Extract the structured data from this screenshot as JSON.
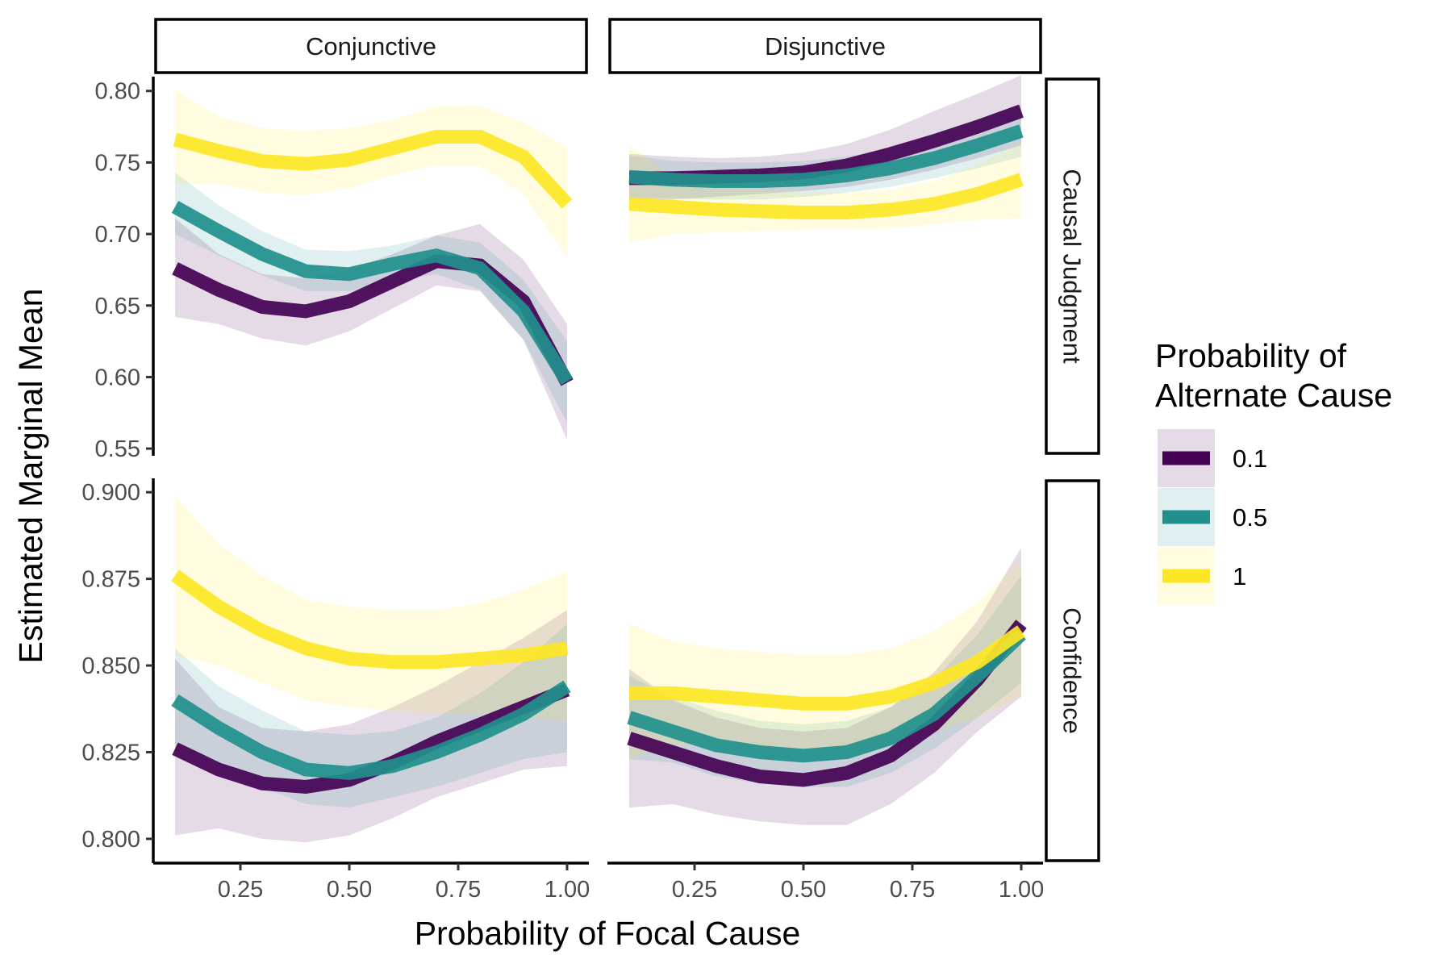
{
  "chart_data": {
    "type": "line",
    "xlabel": "Probability of Focal Cause",
    "ylabel": "Estimated Marginal Mean",
    "x_ticks": [
      0.25,
      0.5,
      0.75,
      1.0
    ],
    "x_tick_labels": [
      "0.25",
      "0.50",
      "0.75",
      "1.00"
    ],
    "xlim": [
      0.05,
      1.05
    ],
    "x": [
      0.1,
      0.2,
      0.3,
      0.4,
      0.5,
      0.6,
      0.7,
      0.8,
      0.9,
      1.0
    ],
    "col_facets": [
      "Conjunctive",
      "Disjunctive"
    ],
    "row_facets": [
      {
        "name": "Causal Judgment",
        "ylim": [
          0.545,
          0.81
        ],
        "y_ticks": [
          0.55,
          0.6,
          0.65,
          0.7,
          0.75,
          0.8
        ],
        "y_tick_labels": [
          "0.55",
          "0.60",
          "0.65",
          "0.70",
          "0.75",
          "0.80"
        ]
      },
      {
        "name": "Confidence",
        "ylim": [
          0.793,
          0.904
        ],
        "y_ticks": [
          0.8,
          0.825,
          0.85,
          0.875,
          0.9
        ],
        "y_tick_labels": [
          "0.800",
          "0.825",
          "0.850",
          "0.875",
          "0.900"
        ]
      }
    ],
    "legend": {
      "title_lines": [
        "Probability of",
        "Alternate Cause"
      ],
      "placement": "right",
      "entries": [
        {
          "label": "0.1",
          "color": "#440154"
        },
        {
          "label": "0.5",
          "color": "#21908C"
        },
        {
          "label": "1",
          "color": "#FDE725"
        }
      ]
    },
    "panels": [
      {
        "row": 0,
        "col": 0,
        "series": [
          {
            "color": "#440154",
            "y": [
              0.676,
              0.661,
              0.649,
              0.646,
              0.653,
              0.667,
              0.681,
              0.678,
              0.653,
              0.596
            ],
            "lower": [
              0.642,
              0.637,
              0.627,
              0.622,
              0.632,
              0.648,
              0.664,
              0.66,
              0.626,
              0.556
            ],
            "upper": [
              0.711,
              0.686,
              0.672,
              0.669,
              0.675,
              0.686,
              0.699,
              0.707,
              0.682,
              0.637
            ]
          },
          {
            "color": "#21908C",
            "y": [
              0.719,
              0.702,
              0.686,
              0.674,
              0.672,
              0.679,
              0.685,
              0.676,
              0.646,
              0.597
            ],
            "lower": [
              0.7,
              0.685,
              0.671,
              0.66,
              0.66,
              0.667,
              0.672,
              0.661,
              0.626,
              0.568
            ],
            "upper": [
              0.743,
              0.72,
              0.702,
              0.689,
              0.688,
              0.692,
              0.699,
              0.694,
              0.668,
              0.625
            ]
          },
          {
            "color": "#FDE725",
            "y": [
              0.766,
              0.758,
              0.751,
              0.749,
              0.752,
              0.76,
              0.768,
              0.768,
              0.754,
              0.721
            ],
            "lower": [
              0.735,
              0.735,
              0.729,
              0.727,
              0.732,
              0.741,
              0.748,
              0.748,
              0.728,
              0.684
            ],
            "upper": [
              0.801,
              0.782,
              0.774,
              0.772,
              0.774,
              0.78,
              0.789,
              0.79,
              0.778,
              0.761
            ]
          }
        ]
      },
      {
        "row": 0,
        "col": 1,
        "series": [
          {
            "color": "#440154",
            "y": [
              0.739,
              0.739,
              0.74,
              0.741,
              0.743,
              0.748,
              0.756,
              0.765,
              0.775,
              0.786
            ],
            "lower": [
              0.722,
              0.724,
              0.726,
              0.728,
              0.73,
              0.733,
              0.738,
              0.745,
              0.753,
              0.762
            ],
            "upper": [
              0.756,
              0.754,
              0.753,
              0.754,
              0.757,
              0.763,
              0.773,
              0.786,
              0.798,
              0.811
            ]
          },
          {
            "color": "#21908C",
            "y": [
              0.74,
              0.738,
              0.737,
              0.737,
              0.738,
              0.741,
              0.746,
              0.753,
              0.762,
              0.772
            ],
            "lower": [
              0.725,
              0.725,
              0.724,
              0.724,
              0.726,
              0.729,
              0.733,
              0.739,
              0.746,
              0.754
            ],
            "upper": [
              0.755,
              0.751,
              0.75,
              0.75,
              0.751,
              0.754,
              0.76,
              0.768,
              0.779,
              0.791
            ]
          },
          {
            "color": "#FDE725",
            "y": [
              0.721,
              0.719,
              0.717,
              0.716,
              0.715,
              0.715,
              0.717,
              0.721,
              0.728,
              0.738
            ],
            "lower": [
              0.694,
              0.7,
              0.701,
              0.702,
              0.703,
              0.703,
              0.704,
              0.707,
              0.71,
              0.711
            ],
            "upper": [
              0.762,
              0.74,
              0.734,
              0.731,
              0.729,
              0.729,
              0.731,
              0.737,
              0.748,
              0.764
            ]
          }
        ]
      },
      {
        "row": 1,
        "col": 0,
        "series": [
          {
            "color": "#440154",
            "y": [
              0.826,
              0.82,
              0.816,
              0.815,
              0.817,
              0.822,
              0.828,
              0.833,
              0.838,
              0.843
            ],
            "lower": [
              0.801,
              0.803,
              0.8,
              0.799,
              0.801,
              0.806,
              0.812,
              0.816,
              0.82,
              0.821
            ],
            "upper": [
              0.852,
              0.838,
              0.832,
              0.831,
              0.833,
              0.838,
              0.844,
              0.851,
              0.858,
              0.866
            ]
          },
          {
            "color": "#21908C",
            "y": [
              0.84,
              0.832,
              0.825,
              0.82,
              0.819,
              0.821,
              0.825,
              0.83,
              0.836,
              0.844
            ],
            "lower": [
              0.825,
              0.821,
              0.815,
              0.81,
              0.809,
              0.812,
              0.815,
              0.819,
              0.823,
              0.825
            ],
            "upper": [
              0.855,
              0.844,
              0.837,
              0.831,
              0.83,
              0.831,
              0.835,
              0.842,
              0.851,
              0.862
            ]
          },
          {
            "color": "#FDE725",
            "y": [
              0.876,
              0.867,
              0.86,
              0.855,
              0.852,
              0.851,
              0.851,
              0.852,
              0.853,
              0.855
            ],
            "lower": [
              0.853,
              0.85,
              0.845,
              0.84,
              0.838,
              0.837,
              0.836,
              0.836,
              0.835,
              0.834
            ],
            "upper": [
              0.899,
              0.885,
              0.876,
              0.869,
              0.867,
              0.866,
              0.866,
              0.868,
              0.872,
              0.877
            ]
          }
        ]
      },
      {
        "row": 1,
        "col": 1,
        "series": [
          {
            "color": "#440154",
            "y": [
              0.829,
              0.825,
              0.821,
              0.818,
              0.817,
              0.819,
              0.824,
              0.833,
              0.846,
              0.862
            ],
            "lower": [
              0.809,
              0.81,
              0.807,
              0.805,
              0.804,
              0.804,
              0.81,
              0.819,
              0.831,
              0.841
            ],
            "upper": [
              0.849,
              0.84,
              0.835,
              0.832,
              0.831,
              0.832,
              0.838,
              0.848,
              0.863,
              0.884
            ]
          },
          {
            "color": "#21908C",
            "y": [
              0.835,
              0.831,
              0.827,
              0.825,
              0.824,
              0.825,
              0.829,
              0.836,
              0.847,
              0.859
            ],
            "lower": [
              0.823,
              0.822,
              0.818,
              0.816,
              0.815,
              0.815,
              0.819,
              0.826,
              0.835,
              0.845
            ],
            "upper": [
              0.847,
              0.841,
              0.837,
              0.834,
              0.833,
              0.834,
              0.838,
              0.846,
              0.859,
              0.876
            ]
          },
          {
            "color": "#FDE725",
            "y": [
              0.842,
              0.842,
              0.841,
              0.84,
              0.839,
              0.839,
              0.841,
              0.845,
              0.851,
              0.86
            ],
            "lower": [
              0.823,
              0.827,
              0.827,
              0.826,
              0.826,
              0.826,
              0.828,
              0.831,
              0.835,
              0.841
            ],
            "upper": [
              0.862,
              0.857,
              0.855,
              0.854,
              0.853,
              0.853,
              0.855,
              0.86,
              0.868,
              0.881
            ]
          }
        ]
      }
    ]
  }
}
